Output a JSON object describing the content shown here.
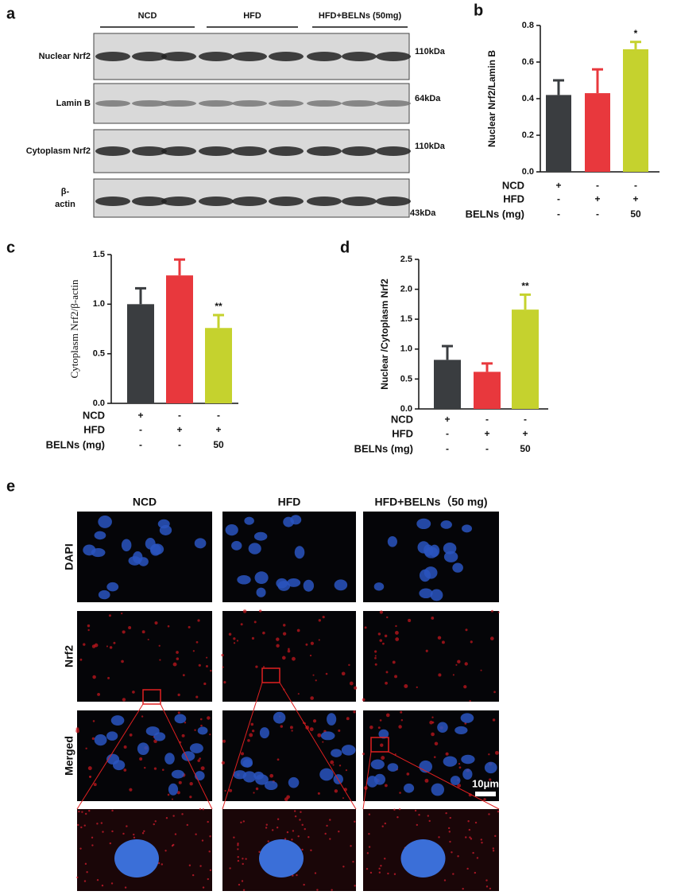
{
  "blot": {
    "panel": "a",
    "groups": [
      "NCD",
      "HFD",
      "HFD+BELNs (50mg)"
    ],
    "rows": [
      {
        "name": "Nuclear Nrf2",
        "size": "110kDa"
      },
      {
        "name": "Lamin B",
        "size": "64kDa"
      },
      {
        "name": "Cytoplasm Nrf2",
        "size": "110kDa"
      },
      {
        "name": [
          "β-",
          "actin"
        ],
        "size": "43kDa"
      }
    ]
  },
  "chart_data": [
    {
      "type": "bar",
      "panel": "b",
      "ylabel": "Nuclear Nrf2/Lamin B",
      "values": [
        0.42,
        0.43,
        0.67
      ],
      "errors": [
        0.08,
        0.13,
        0.04
      ],
      "colors": [
        "#3a3d40",
        "#e8383d",
        "#c5d22e"
      ],
      "annotations": [
        null,
        null,
        "*"
      ],
      "ylim": [
        0,
        0.8
      ],
      "yticks": [
        {
          "value": 0,
          "label": "0.0"
        },
        0.2,
        0.4,
        0.6,
        0.8
      ],
      "treatments": [
        {
          "name": "NCD",
          "marks": [
            "+",
            "-",
            "-"
          ]
        },
        {
          "name": "HFD",
          "marks": [
            "-",
            "+",
            "+"
          ]
        },
        {
          "name": "BELNs (mg)",
          "marks": [
            "-",
            "-",
            "50"
          ]
        }
      ]
    },
    {
      "type": "bar",
      "panel": "c",
      "ylabel": "Cytoplasm Nrf2/β-actin",
      "values": [
        1.0,
        1.29,
        0.76
      ],
      "errors": [
        0.16,
        0.16,
        0.13
      ],
      "colors": [
        "#3a3d40",
        "#e8383d",
        "#c5d22e"
      ],
      "annotations": [
        null,
        null,
        "**"
      ],
      "ylim": [
        0,
        1.5
      ],
      "yticks": [
        {
          "value": 0,
          "label": "0.0"
        },
        0.5,
        {
          "value": 1,
          "label": "1.0"
        },
        1.5
      ],
      "treatments": [
        {
          "name": "NCD",
          "marks": [
            "+",
            "-",
            "-"
          ]
        },
        {
          "name": "HFD",
          "marks": [
            "-",
            "+",
            "+"
          ]
        },
        {
          "name": "BELNs (mg)",
          "marks": [
            "-",
            "-",
            "50"
          ]
        }
      ]
    },
    {
      "type": "bar",
      "panel": "d",
      "ylabel": "Nuclear /Cytoplasm Nrf2",
      "values": [
        0.82,
        0.62,
        1.66
      ],
      "errors": [
        0.23,
        0.14,
        0.25
      ],
      "colors": [
        "#3a3d40",
        "#e8383d",
        "#c5d22e"
      ],
      "annotations": [
        null,
        null,
        "**"
      ],
      "ylim": [
        0,
        2.5
      ],
      "yticks": [
        {
          "value": 0,
          "label": "0.0"
        },
        0.5,
        {
          "value": 1,
          "label": "1.0"
        },
        1.5,
        {
          "value": 2,
          "label": "2.0"
        },
        2.5
      ],
      "treatments": [
        {
          "name": "NCD",
          "marks": [
            "+",
            "-",
            "-"
          ]
        },
        {
          "name": "HFD",
          "marks": [
            "-",
            "+",
            "+"
          ]
        },
        {
          "name": "BELNs (mg)",
          "marks": [
            "-",
            "-",
            "50"
          ]
        }
      ]
    }
  ],
  "microscopy": {
    "panel": "e",
    "columns": [
      "NCD",
      "HFD",
      "HFD+BELNs（50 mg)"
    ],
    "rows": [
      "DAPI",
      "Nrf2",
      "Merged"
    ],
    "scale": "10μm"
  }
}
